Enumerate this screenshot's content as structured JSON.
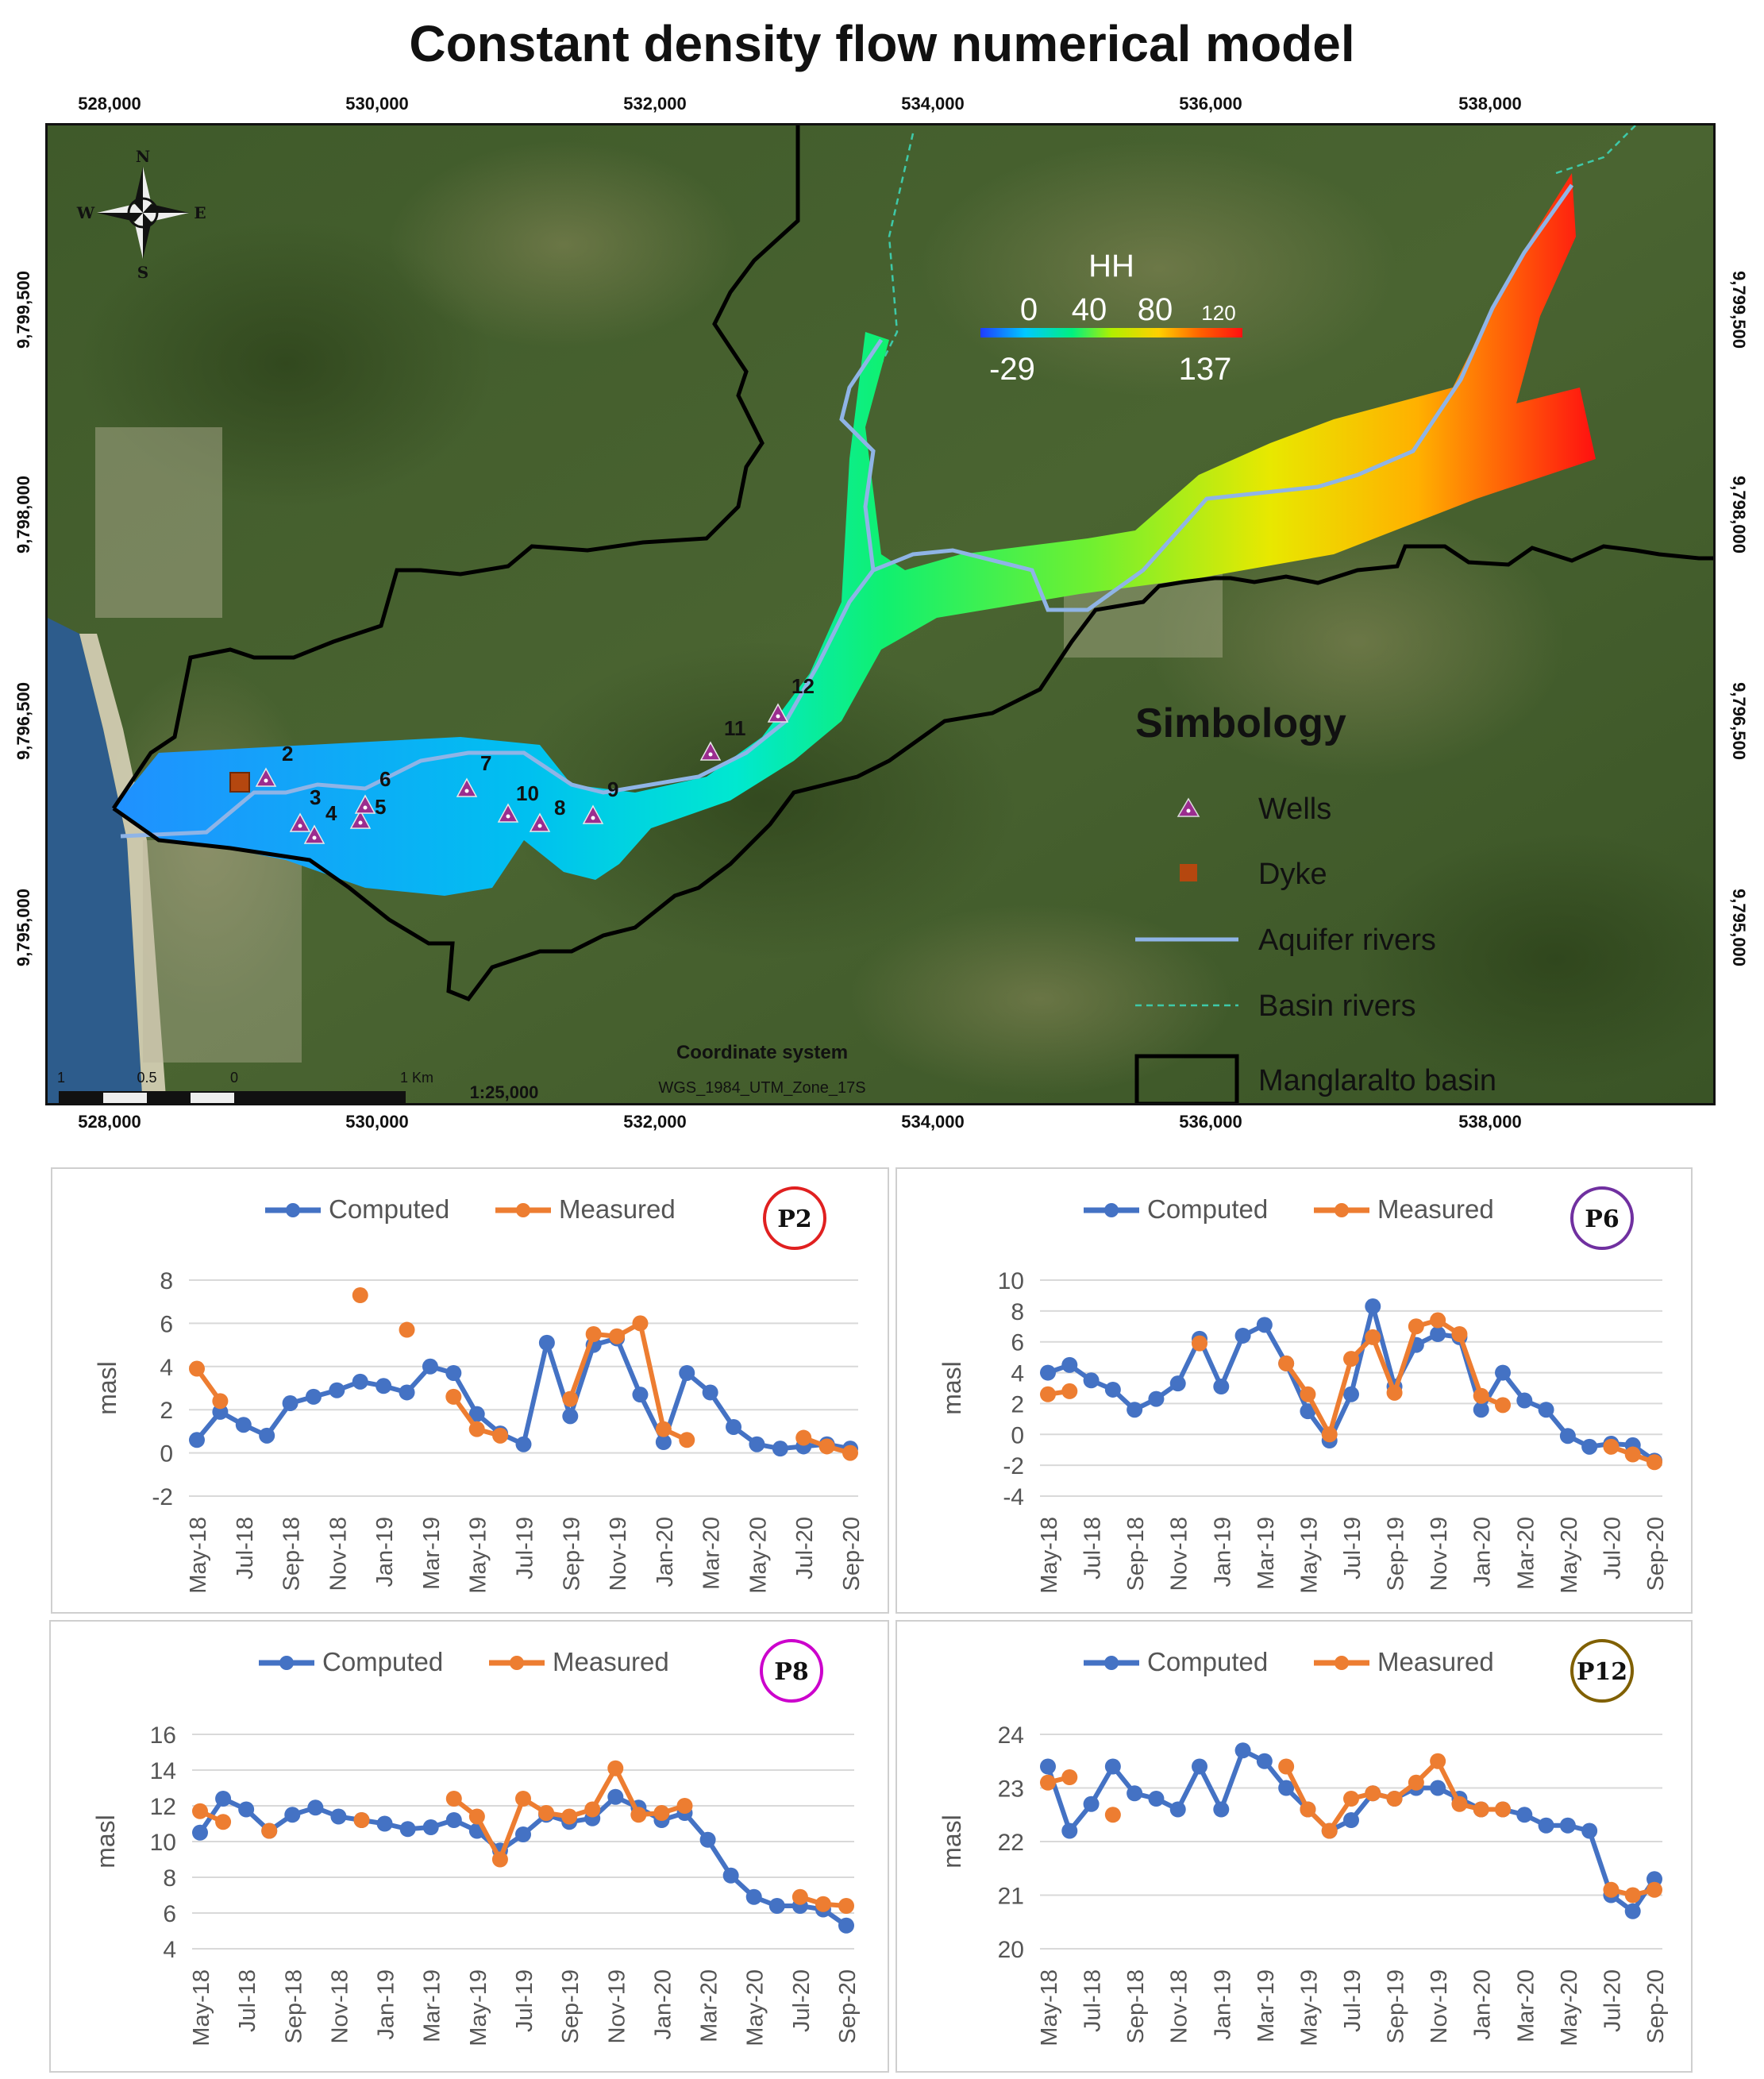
{
  "page": {
    "title": "Constant density flow numerical model"
  },
  "map": {
    "x_ticks": [
      "528,000",
      "530,000",
      "532,000",
      "534,000",
      "536,000",
      "538,000"
    ],
    "y_ticks": [
      "9,799,500",
      "9,798,000",
      "9,796,500",
      "9,795,000"
    ],
    "north_arrow": {
      "n": "N",
      "s": "S",
      "e": "E",
      "w": "W"
    },
    "hh_legend": {
      "title": "HH",
      "top_labels": [
        "0",
        "40",
        "80",
        "120"
      ],
      "min": "-29",
      "max": "137",
      "colors": [
        "#1f3cff",
        "#00c8ff",
        "#00f080",
        "#b0f000",
        "#ffd000",
        "#ff6000",
        "#ff1010"
      ]
    },
    "wells": [
      "2",
      "3",
      "4",
      "5",
      "6",
      "7",
      "8",
      "9",
      "10",
      "11",
      "12"
    ],
    "symbology": {
      "title": "Simbology",
      "wells": "Wells",
      "dyke": "Dyke",
      "aquifer_rivers": "Aquifer rivers",
      "basin_rivers": "Basin rivers",
      "basin": "Manglaralto basin"
    },
    "coordinate_system": {
      "title": "Coordinate system",
      "name": "WGS_1984_UTM_Zone_17S"
    },
    "scale": {
      "labels": [
        "1",
        "0.5",
        "0",
        "1 Km"
      ],
      "ratio": "1:25,000"
    },
    "colors": {
      "well": "#9b2d8f",
      "dyke": "#b5470f",
      "aquifer_river": "#8fb4e6",
      "basin_river": "#3ec9a8",
      "basin_outline": "#000000"
    }
  },
  "chart_data": [
    {
      "type": "line",
      "badge": "P2",
      "badge_color": "#e02020",
      "ylabel": "masl",
      "ylim": [
        -2,
        8
      ],
      "yticks": [
        -2,
        0,
        2,
        4,
        6,
        8
      ],
      "months": [
        "May-18",
        "Jun-18",
        "Jul-18",
        "Aug-18",
        "Sep-18",
        "Oct-18",
        "Nov-18",
        "Dec-18",
        "Jan-19",
        "Feb-19",
        "Mar-19",
        "Apr-19",
        "May-19",
        "Jun-19",
        "Jul-19",
        "Aug-19",
        "Sep-19",
        "Oct-19",
        "Nov-19",
        "Dec-19",
        "Jan-20",
        "Feb-20",
        "Mar-20",
        "Apr-20",
        "May-20",
        "Jun-20",
        "Jul-20",
        "Aug-20",
        "Sep-20"
      ],
      "tick_labels": [
        "May-18",
        "Jul-18",
        "Sep-18",
        "Nov-18",
        "Jan-19",
        "Mar-19",
        "May-19",
        "Jul-19",
        "Sep-19",
        "Nov-19",
        "Jan-20",
        "Mar-20",
        "May-20",
        "Jul-20",
        "Sep-20"
      ],
      "series": [
        {
          "name": "Computed",
          "color": "#4472c4",
          "values": [
            0.6,
            1.9,
            1.3,
            0.8,
            2.3,
            2.6,
            2.9,
            3.3,
            3.1,
            2.8,
            4.0,
            3.7,
            1.8,
            0.9,
            0.4,
            5.1,
            1.7,
            5.0,
            5.3,
            2.7,
            0.5,
            3.7,
            2.8,
            1.2,
            0.4,
            0.2,
            0.3,
            0.4,
            0.2
          ]
        },
        {
          "name": "Measured",
          "color": "#ed7d31",
          "values": [
            3.9,
            2.4,
            null,
            null,
            null,
            null,
            null,
            7.3,
            null,
            5.7,
            null,
            2.6,
            1.1,
            0.8,
            null,
            null,
            2.5,
            5.5,
            5.4,
            6.0,
            1.1,
            0.6,
            null,
            null,
            null,
            null,
            0.7,
            0.3,
            0.0
          ]
        }
      ]
    },
    {
      "type": "line",
      "badge": "P6",
      "badge_color": "#7030a0",
      "ylabel": "masl",
      "ylim": [
        -4,
        10
      ],
      "yticks": [
        -4,
        -2,
        0,
        2,
        4,
        6,
        8,
        10
      ],
      "months": [
        "May-18",
        "Jun-18",
        "Jul-18",
        "Aug-18",
        "Sep-18",
        "Oct-18",
        "Nov-18",
        "Dec-18",
        "Jan-19",
        "Feb-19",
        "Mar-19",
        "Apr-19",
        "May-19",
        "Jun-19",
        "Jul-19",
        "Aug-19",
        "Sep-19",
        "Oct-19",
        "Nov-19",
        "Dec-19",
        "Jan-20",
        "Feb-20",
        "Mar-20",
        "Apr-20",
        "May-20",
        "Jun-20",
        "Jul-20",
        "Aug-20",
        "Sep-20"
      ],
      "tick_labels": [
        "May-18",
        "Jul-18",
        "Sep-18",
        "Nov-18",
        "Jan-19",
        "Mar-19",
        "May-19",
        "Jul-19",
        "Sep-19",
        "Nov-19",
        "Jan-20",
        "Mar-20",
        "May-20",
        "Jul-20",
        "Sep-20"
      ],
      "series": [
        {
          "name": "Computed",
          "color": "#4472c4",
          "values": [
            4.0,
            4.5,
            3.5,
            2.9,
            1.6,
            2.3,
            3.3,
            6.2,
            3.1,
            6.4,
            7.1,
            4.6,
            1.5,
            -0.4,
            2.6,
            8.3,
            3.1,
            5.8,
            6.5,
            6.3,
            1.6,
            4.0,
            2.2,
            1.6,
            -0.1,
            -0.8,
            -0.6,
            -0.7,
            -1.7
          ]
        },
        {
          "name": "Measured",
          "color": "#ed7d31",
          "values": [
            2.6,
            2.8,
            null,
            null,
            null,
            null,
            null,
            5.9,
            null,
            null,
            null,
            4.6,
            2.6,
            0.0,
            4.9,
            6.3,
            2.7,
            7.0,
            7.4,
            6.5,
            2.5,
            1.9,
            null,
            null,
            null,
            null,
            -0.8,
            -1.3,
            -1.8
          ]
        }
      ]
    },
    {
      "type": "line",
      "badge": "P8",
      "badge_color": "#cc00cc",
      "ylabel": "masl",
      "ylim": [
        4,
        16
      ],
      "yticks": [
        4,
        6,
        8,
        10,
        12,
        14,
        16
      ],
      "months": [
        "May-18",
        "Jun-18",
        "Jul-18",
        "Aug-18",
        "Sep-18",
        "Oct-18",
        "Nov-18",
        "Dec-18",
        "Jan-19",
        "Feb-19",
        "Mar-19",
        "Apr-19",
        "May-19",
        "Jun-19",
        "Jul-19",
        "Aug-19",
        "Sep-19",
        "Oct-19",
        "Nov-19",
        "Dec-19",
        "Jan-20",
        "Feb-20",
        "Mar-20",
        "Apr-20",
        "May-20",
        "Jun-20",
        "Jul-20",
        "Aug-20",
        "Sep-20"
      ],
      "tick_labels": [
        "May-18",
        "Jul-18",
        "Sep-18",
        "Nov-18",
        "Jan-19",
        "Mar-19",
        "May-19",
        "Jul-19",
        "Sep-19",
        "Nov-19",
        "Jan-20",
        "Mar-20",
        "May-20",
        "Jul-20",
        "Sep-20"
      ],
      "series": [
        {
          "name": "Computed",
          "color": "#4472c4",
          "values": [
            10.5,
            12.4,
            11.8,
            10.6,
            11.5,
            11.9,
            11.4,
            11.2,
            11.0,
            10.7,
            10.8,
            11.2,
            10.6,
            9.5,
            10.4,
            11.5,
            11.1,
            11.3,
            12.5,
            11.9,
            11.2,
            11.6,
            10.1,
            8.1,
            6.9,
            6.4,
            6.4,
            6.2,
            5.3
          ]
        },
        {
          "name": "Measured",
          "color": "#ed7d31",
          "values": [
            11.7,
            11.1,
            null,
            10.6,
            null,
            null,
            null,
            11.2,
            null,
            null,
            null,
            12.4,
            11.4,
            9.0,
            12.4,
            11.6,
            11.4,
            11.8,
            14.1,
            11.5,
            11.6,
            12.0,
            null,
            null,
            null,
            null,
            6.9,
            6.5,
            6.4
          ]
        }
      ]
    },
    {
      "type": "line",
      "badge": "P12",
      "badge_color": "#806000",
      "ylabel": "masl",
      "ylim": [
        20,
        24
      ],
      "yticks": [
        20,
        21,
        22,
        23,
        24
      ],
      "months": [
        "May-18",
        "Jun-18",
        "Jul-18",
        "Aug-18",
        "Sep-18",
        "Oct-18",
        "Nov-18",
        "Dec-18",
        "Jan-19",
        "Feb-19",
        "Mar-19",
        "Apr-19",
        "May-19",
        "Jun-19",
        "Jul-19",
        "Aug-19",
        "Sep-19",
        "Oct-19",
        "Nov-19",
        "Dec-19",
        "Jan-20",
        "Feb-20",
        "Mar-20",
        "Apr-20",
        "May-20",
        "Jun-20",
        "Jul-20",
        "Aug-20",
        "Sep-20"
      ],
      "tick_labels": [
        "May-18",
        "Jul-18",
        "Sep-18",
        "Nov-18",
        "Jan-19",
        "Mar-19",
        "May-19",
        "Jul-19",
        "Sep-19",
        "Nov-19",
        "Jan-20",
        "Mar-20",
        "May-20",
        "Jul-20",
        "Sep-20"
      ],
      "series": [
        {
          "name": "Computed",
          "color": "#4472c4",
          "values": [
            23.4,
            22.2,
            22.7,
            23.4,
            22.9,
            22.8,
            22.6,
            23.4,
            22.6,
            23.7,
            23.5,
            23.0,
            22.6,
            22.2,
            22.4,
            22.9,
            22.8,
            23.0,
            23.0,
            22.8,
            22.6,
            22.6,
            22.5,
            22.3,
            22.3,
            22.2,
            21.0,
            20.7,
            21.3
          ]
        },
        {
          "name": "Measured",
          "color": "#ed7d31",
          "values": [
            23.1,
            23.2,
            null,
            22.5,
            null,
            null,
            null,
            null,
            null,
            null,
            null,
            23.4,
            22.6,
            22.2,
            22.8,
            22.9,
            22.8,
            23.1,
            23.5,
            22.7,
            22.6,
            22.6,
            null,
            null,
            null,
            null,
            21.1,
            21.0,
            21.1
          ]
        }
      ]
    }
  ]
}
